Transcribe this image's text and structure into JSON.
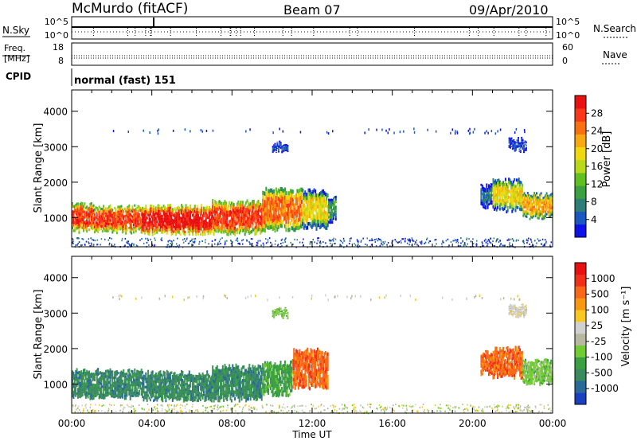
{
  "header": {
    "station": "McMurdo (fitACF)",
    "beam": "Beam 07",
    "date": "09/Apr/2010"
  },
  "strips": {
    "nsky_label": "N.Sky",
    "nsky_left_ticks": [
      "10^5",
      "10^0"
    ],
    "nsky_right_ticks": [
      "10^5",
      "10^0"
    ],
    "nsearch_label": "N.Search",
    "freq_label": "Freq.",
    "freq_unit": "[MHz]",
    "freq_ticks": [
      "18",
      "8"
    ],
    "nave_ticks": [
      "60",
      "0"
    ],
    "nave_label": "Nave",
    "cpid_label": "CPID",
    "cpid_value": "normal (fast) 151"
  },
  "chart_data": [
    {
      "type": "heatmap",
      "panel": "power",
      "ylabel": "Slant Range [km]",
      "xlabel": "",
      "x_ticks": [
        "00:00",
        "04:00",
        "08:00",
        "12:00",
        "16:00",
        "20:00",
        "00:00"
      ],
      "y_ticks": [
        1000,
        2000,
        3000,
        4000
      ],
      "xlim_hours": [
        0,
        24
      ],
      "ylim_km": [
        180,
        4600
      ],
      "colorbar": {
        "label": "Power [dB]",
        "ticks": [
          "4",
          "8",
          "12",
          "16",
          "20",
          "24",
          "28"
        ],
        "colors": [
          "#1010e8",
          "#1858c0",
          "#2e7e78",
          "#3aa040",
          "#60c020",
          "#b8d818",
          "#f0d810",
          "#f8a810",
          "#f87010",
          "#f83818",
          "#e81010"
        ]
      },
      "regions": [
        {
          "t0": 0.0,
          "t1": 1.0,
          "r0": 620,
          "r1": 1380,
          "level": 9
        },
        {
          "t0": 1.0,
          "t1": 3.5,
          "r0": 600,
          "r1": 1300,
          "level": 9
        },
        {
          "t0": 3.5,
          "t1": 7.0,
          "r0": 560,
          "r1": 1320,
          "level": 10
        },
        {
          "t0": 7.0,
          "t1": 9.5,
          "r0": 560,
          "r1": 1450,
          "level": 9
        },
        {
          "t0": 9.5,
          "t1": 11.5,
          "r0": 650,
          "r1": 1800,
          "level": 8
        },
        {
          "t0": 11.5,
          "t1": 12.8,
          "r0": 700,
          "r1": 1750,
          "level": 6
        },
        {
          "t0": 10.0,
          "t1": 10.8,
          "r0": 2900,
          "r1": 3100,
          "level": 1
        },
        {
          "t0": 12.8,
          "t1": 13.2,
          "r0": 900,
          "r1": 1600,
          "level": 3
        },
        {
          "t0": 20.4,
          "t1": 21.0,
          "r0": 1300,
          "r1": 1900,
          "level": 2
        },
        {
          "t0": 21.0,
          "t1": 22.5,
          "r0": 1200,
          "r1": 2050,
          "level": 6
        },
        {
          "t0": 22.5,
          "t1": 24.0,
          "r0": 1000,
          "r1": 1650,
          "level": 7
        },
        {
          "t0": 21.8,
          "t1": 22.7,
          "r0": 2900,
          "r1": 3200,
          "level": 1
        }
      ]
    },
    {
      "type": "heatmap",
      "panel": "velocity",
      "ylabel": "Slant Range [km]",
      "xlabel": "Time UT",
      "x_ticks": [
        "00:00",
        "04:00",
        "08:00",
        "12:00",
        "16:00",
        "20:00",
        "00:00"
      ],
      "y_ticks": [
        1000,
        2000,
        3000,
        4000
      ],
      "xlim_hours": [
        0,
        24
      ],
      "ylim_km": [
        180,
        4600
      ],
      "colorbar": {
        "label": "Velocity [m s⁻¹]",
        "ticks": [
          "1000",
          "500",
          "100",
          "25",
          "-25",
          "-100",
          "-500",
          "-1000"
        ],
        "colors": [
          "#1840c0",
          "#2a6a9a",
          "#3a8a60",
          "#3aa040",
          "#70cc30",
          "#b8b8a0",
          "#d0d0d0",
          "#f8c820",
          "#f89810",
          "#f86818",
          "#f03018",
          "#e81010"
        ]
      },
      "regions": [
        {
          "t0": 0.0,
          "t1": 3.5,
          "r0": 620,
          "r1": 1380,
          "level": 2
        },
        {
          "t0": 3.5,
          "t1": 7.0,
          "r0": 560,
          "r1": 1320,
          "level": 2
        },
        {
          "t0": 7.0,
          "t1": 9.5,
          "r0": 560,
          "r1": 1500,
          "level": 2
        },
        {
          "t0": 9.5,
          "t1": 11.0,
          "r0": 700,
          "r1": 1600,
          "level": 3
        },
        {
          "t0": 11.0,
          "t1": 12.8,
          "r0": 900,
          "r1": 1950,
          "level": 9
        },
        {
          "t0": 10.0,
          "t1": 10.8,
          "r0": 2900,
          "r1": 3100,
          "level": 4
        },
        {
          "t0": 20.4,
          "t1": 21.0,
          "r0": 1300,
          "r1": 1900,
          "level": 9
        },
        {
          "t0": 21.0,
          "t1": 22.5,
          "r0": 1200,
          "r1": 2000,
          "level": 9
        },
        {
          "t0": 22.5,
          "t1": 24.0,
          "r0": 1000,
          "r1": 1650,
          "level": 4
        },
        {
          "t0": 21.8,
          "t1": 22.7,
          "r0": 2900,
          "r1": 3200,
          "level": 6
        }
      ]
    }
  ]
}
